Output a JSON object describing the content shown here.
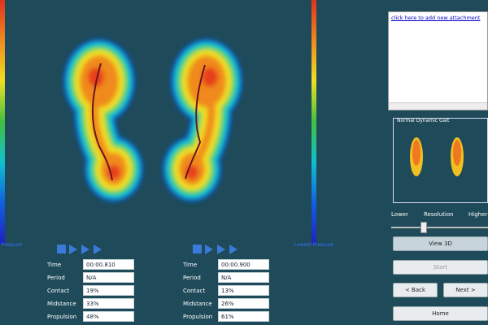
{
  "attachment_link": "click here to add new attachment",
  "pressure_legend": [
    "Lowest Pressure",
    "Lowest Pressure"
  ],
  "gait_panel": {
    "title": "Normal Dynamic Gait"
  },
  "resolution": {
    "low": "Lower",
    "label": "Resolution",
    "high": "Higher"
  },
  "buttons": {
    "view_3d": "View 3D",
    "start": "Start",
    "back": "< Back",
    "next": "Next >",
    "home": "Home"
  },
  "feet": [
    {
      "stats": [
        [
          "Time",
          "00:00.810"
        ],
        [
          "Period",
          "N/A"
        ],
        [
          "Contact",
          "19%"
        ],
        [
          "Midstance",
          "33%"
        ],
        [
          "Propulsion",
          "48%"
        ]
      ]
    },
    {
      "stats": [
        [
          "Time",
          "00:00.900"
        ],
        [
          "Period",
          "N/A"
        ],
        [
          "Contact",
          "13%"
        ],
        [
          "Midstance",
          "26%"
        ],
        [
          "Propulsion",
          "61%"
        ]
      ]
    }
  ]
}
